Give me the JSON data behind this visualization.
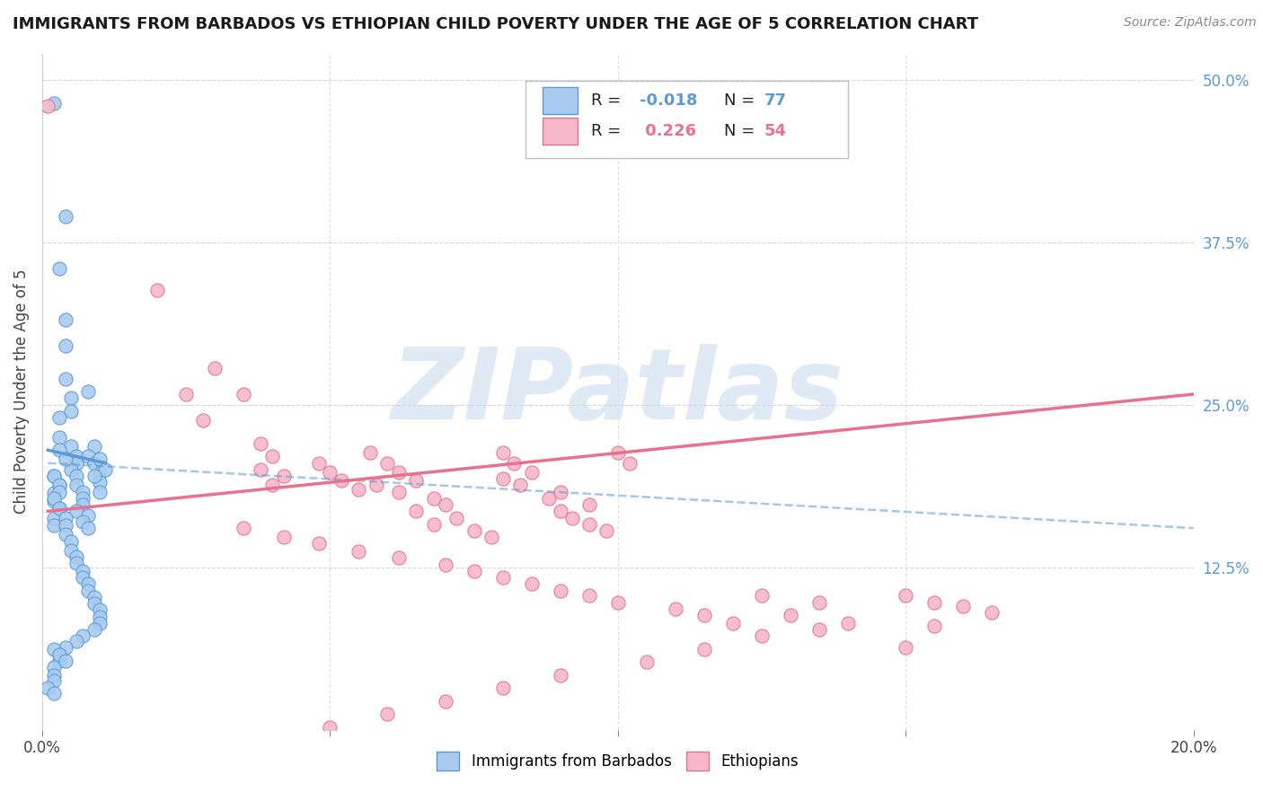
{
  "title": "IMMIGRANTS FROM BARBADOS VS ETHIOPIAN CHILD POVERTY UNDER THE AGE OF 5 CORRELATION CHART",
  "source": "Source: ZipAtlas.com",
  "ylabel": "Child Poverty Under the Age of 5",
  "yticks_labels": [
    "12.5%",
    "25.0%",
    "37.5%",
    "50.0%"
  ],
  "ytick_vals": [
    0.125,
    0.25,
    0.375,
    0.5
  ],
  "legend1_color": "#aacbf0",
  "legend2_color": "#f5b8ca",
  "line1_color": "#5b9bd5",
  "line2_color": "#e8718e",
  "watermark_text": "ZIPatlas",
  "watermark_color": "#ccdcef",
  "scatter_blue": [
    [
      0.002,
      0.482
    ],
    [
      0.004,
      0.395
    ],
    [
      0.003,
      0.355
    ],
    [
      0.004,
      0.315
    ],
    [
      0.004,
      0.295
    ],
    [
      0.004,
      0.27
    ],
    [
      0.005,
      0.255
    ],
    [
      0.005,
      0.245
    ],
    [
      0.003,
      0.24
    ],
    [
      0.003,
      0.225
    ],
    [
      0.005,
      0.218
    ],
    [
      0.006,
      0.21
    ],
    [
      0.006,
      0.205
    ],
    [
      0.005,
      0.2
    ],
    [
      0.006,
      0.195
    ],
    [
      0.006,
      0.188
    ],
    [
      0.007,
      0.183
    ],
    [
      0.007,
      0.178
    ],
    [
      0.007,
      0.173
    ],
    [
      0.006,
      0.168
    ],
    [
      0.008,
      0.165
    ],
    [
      0.007,
      0.16
    ],
    [
      0.008,
      0.155
    ],
    [
      0.009,
      0.218
    ],
    [
      0.008,
      0.21
    ],
    [
      0.009,
      0.205
    ],
    [
      0.01,
      0.197
    ],
    [
      0.01,
      0.19
    ],
    [
      0.01,
      0.183
    ],
    [
      0.01,
      0.208
    ],
    [
      0.011,
      0.2
    ],
    [
      0.009,
      0.195
    ],
    [
      0.003,
      0.215
    ],
    [
      0.004,
      0.208
    ],
    [
      0.002,
      0.195
    ],
    [
      0.003,
      0.188
    ],
    [
      0.002,
      0.182
    ],
    [
      0.002,
      0.176
    ],
    [
      0.003,
      0.17
    ],
    [
      0.002,
      0.163
    ],
    [
      0.002,
      0.157
    ],
    [
      0.002,
      0.195
    ],
    [
      0.003,
      0.188
    ],
    [
      0.003,
      0.183
    ],
    [
      0.002,
      0.178
    ],
    [
      0.003,
      0.17
    ],
    [
      0.004,
      0.163
    ],
    [
      0.004,
      0.157
    ],
    [
      0.004,
      0.15
    ],
    [
      0.005,
      0.145
    ],
    [
      0.005,
      0.138
    ],
    [
      0.006,
      0.133
    ],
    [
      0.006,
      0.128
    ],
    [
      0.007,
      0.122
    ],
    [
      0.007,
      0.117
    ],
    [
      0.008,
      0.112
    ],
    [
      0.008,
      0.107
    ],
    [
      0.009,
      0.102
    ],
    [
      0.009,
      0.097
    ],
    [
      0.01,
      0.092
    ],
    [
      0.01,
      0.087
    ],
    [
      0.01,
      0.082
    ],
    [
      0.009,
      0.077
    ],
    [
      0.007,
      0.072
    ],
    [
      0.006,
      0.068
    ],
    [
      0.004,
      0.063
    ],
    [
      0.003,
      0.058
    ],
    [
      0.003,
      0.053
    ],
    [
      0.002,
      0.048
    ],
    [
      0.002,
      0.042
    ],
    [
      0.002,
      0.038
    ],
    [
      0.001,
      0.032
    ],
    [
      0.002,
      0.028
    ],
    [
      0.002,
      0.062
    ],
    [
      0.003,
      0.058
    ],
    [
      0.004,
      0.053
    ],
    [
      0.008,
      0.26
    ]
  ],
  "scatter_pink": [
    [
      0.001,
      0.48
    ],
    [
      0.02,
      0.338
    ],
    [
      0.03,
      0.278
    ],
    [
      0.025,
      0.258
    ],
    [
      0.028,
      0.238
    ],
    [
      0.035,
      0.258
    ],
    [
      0.038,
      0.22
    ],
    [
      0.04,
      0.21
    ],
    [
      0.038,
      0.2
    ],
    [
      0.042,
      0.195
    ],
    [
      0.04,
      0.188
    ],
    [
      0.048,
      0.205
    ],
    [
      0.05,
      0.198
    ],
    [
      0.052,
      0.192
    ],
    [
      0.055,
      0.185
    ],
    [
      0.057,
      0.213
    ],
    [
      0.06,
      0.205
    ],
    [
      0.062,
      0.198
    ],
    [
      0.065,
      0.192
    ],
    [
      0.058,
      0.188
    ],
    [
      0.062,
      0.183
    ],
    [
      0.068,
      0.178
    ],
    [
      0.07,
      0.173
    ],
    [
      0.065,
      0.168
    ],
    [
      0.072,
      0.163
    ],
    [
      0.068,
      0.158
    ],
    [
      0.075,
      0.153
    ],
    [
      0.078,
      0.148
    ],
    [
      0.08,
      0.213
    ],
    [
      0.082,
      0.205
    ],
    [
      0.085,
      0.198
    ],
    [
      0.08,
      0.193
    ],
    [
      0.083,
      0.188
    ],
    [
      0.09,
      0.183
    ],
    [
      0.088,
      0.178
    ],
    [
      0.095,
      0.173
    ],
    [
      0.09,
      0.168
    ],
    [
      0.092,
      0.163
    ],
    [
      0.095,
      0.158
    ],
    [
      0.098,
      0.153
    ],
    [
      0.1,
      0.213
    ],
    [
      0.102,
      0.205
    ],
    [
      0.035,
      0.155
    ],
    [
      0.042,
      0.148
    ],
    [
      0.048,
      0.143
    ],
    [
      0.055,
      0.137
    ],
    [
      0.062,
      0.132
    ],
    [
      0.07,
      0.127
    ],
    [
      0.075,
      0.122
    ],
    [
      0.08,
      0.117
    ],
    [
      0.085,
      0.112
    ],
    [
      0.09,
      0.107
    ],
    [
      0.095,
      0.103
    ],
    [
      0.1,
      0.098
    ],
    [
      0.11,
      0.093
    ],
    [
      0.115,
      0.088
    ],
    [
      0.12,
      0.082
    ],
    [
      0.125,
      0.103
    ],
    [
      0.135,
      0.098
    ],
    [
      0.15,
      0.063
    ],
    [
      0.155,
      0.08
    ],
    [
      0.16,
      0.095
    ],
    [
      0.165,
      0.09
    ],
    [
      0.15,
      0.103
    ],
    [
      0.155,
      0.098
    ],
    [
      0.13,
      0.088
    ],
    [
      0.14,
      0.082
    ],
    [
      0.135,
      0.077
    ],
    [
      0.125,
      0.072
    ],
    [
      0.115,
      0.062
    ],
    [
      0.105,
      0.052
    ],
    [
      0.09,
      0.042
    ],
    [
      0.08,
      0.032
    ],
    [
      0.07,
      0.022
    ],
    [
      0.06,
      0.012
    ],
    [
      0.05,
      0.002
    ]
  ],
  "blue_solid_line": [
    [
      0.001,
      0.215
    ],
    [
      0.011,
      0.205
    ]
  ],
  "blue_dashed_line": [
    [
      0.001,
      0.205
    ],
    [
      0.2,
      0.155
    ]
  ],
  "pink_solid_line": [
    [
      0.001,
      0.168
    ],
    [
      0.2,
      0.258
    ]
  ],
  "xmin": 0.0,
  "xmax": 0.2,
  "ymin": 0.0,
  "ymax": 0.52,
  "xtick_positions": [
    0.0,
    0.05,
    0.1,
    0.15,
    0.2
  ],
  "xtick_labels_show": [
    "0.0%",
    "",
    "",
    "",
    "20.0%"
  ]
}
